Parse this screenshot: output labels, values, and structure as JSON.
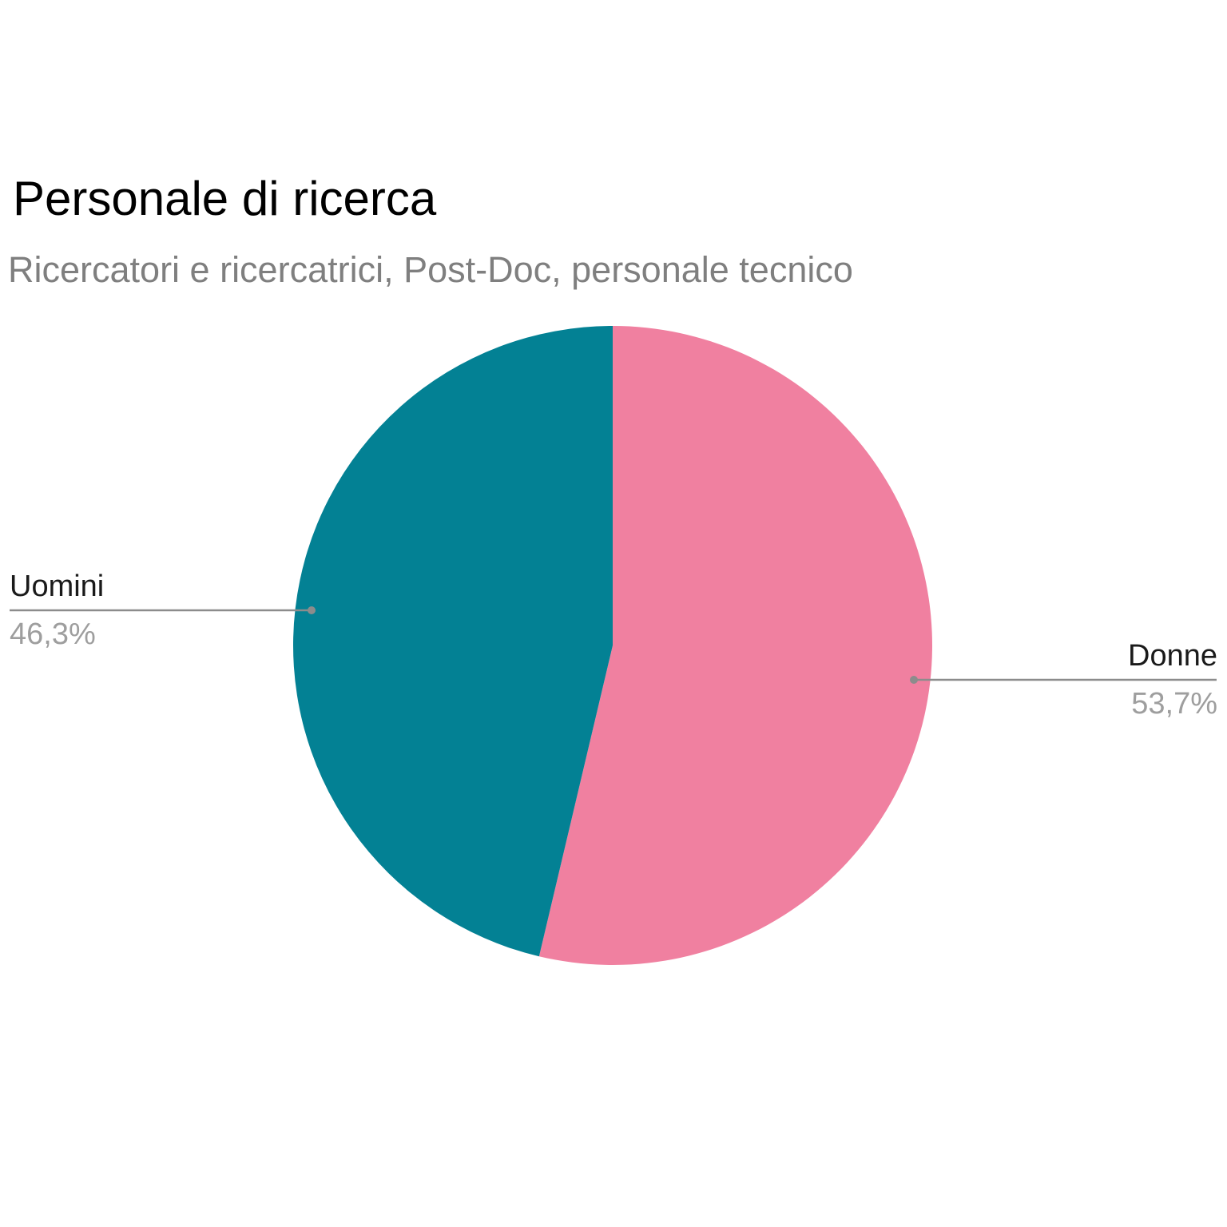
{
  "chart_data": {
    "type": "pie",
    "title": "Personale di ricerca",
    "subtitle": "Ricercatori e ricercatrici, Post-Doc, personale tecnico",
    "slices": [
      {
        "label": "Donne",
        "value": 53.7,
        "display": "53,7%",
        "color": "#f080a0"
      },
      {
        "label": "Uomini",
        "value": 46.3,
        "display": "46,3%",
        "color": "#038194"
      }
    ],
    "start_angle_deg": 0,
    "direction": "clockwise",
    "leader_line_color": "#8c8c8c"
  }
}
